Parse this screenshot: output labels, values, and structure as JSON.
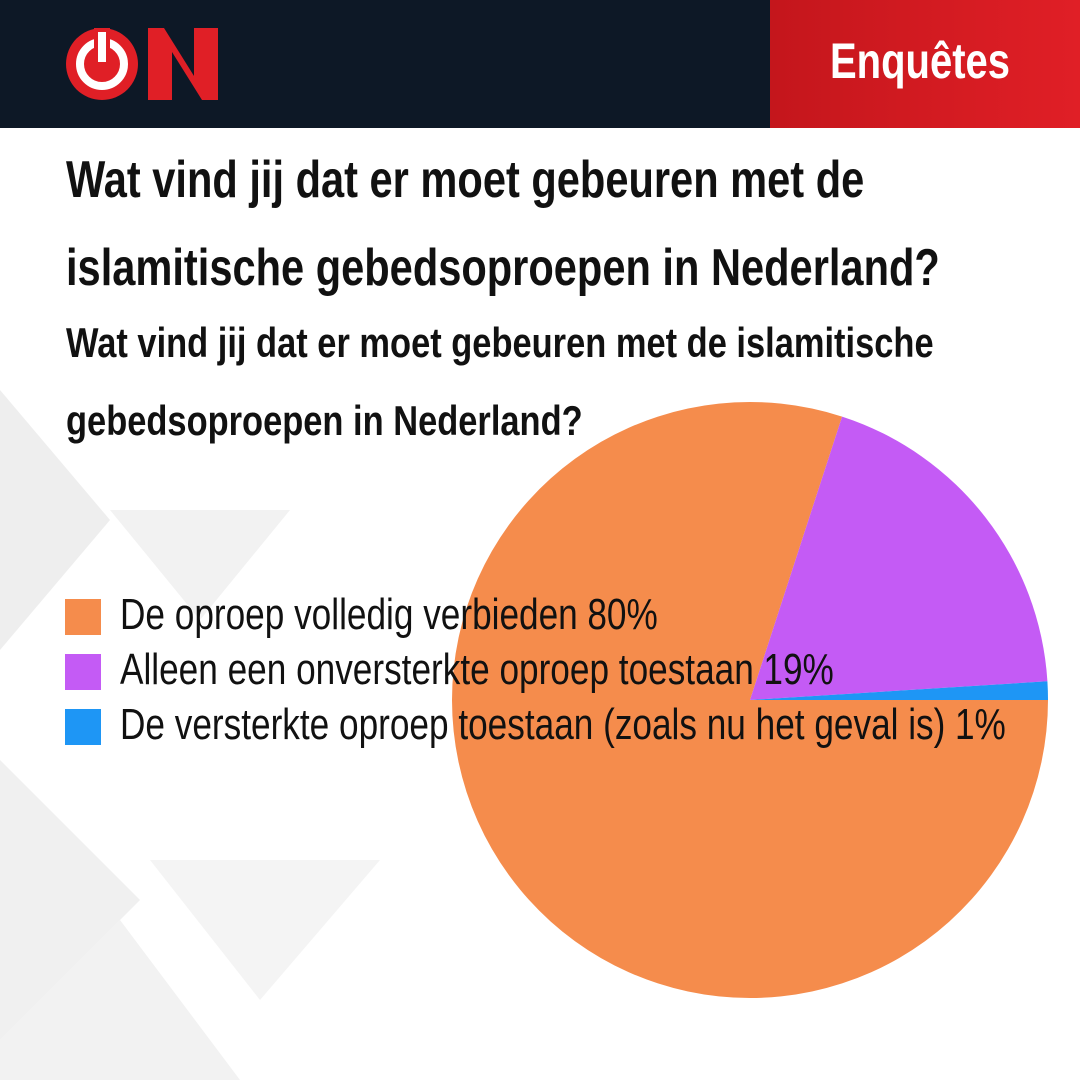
{
  "header": {
    "section": "Enquêtes"
  },
  "chart_data": {
    "type": "pie",
    "title": "Wat vind jij dat er moet gebeuren met de islamitische gebedsoproepen in Nederland?",
    "subtitle": "Wat vind jij dat er moet gebeuren met de islamitische gebedsoproepen in Nederland?",
    "categories": [
      "De oproep volledig verbieden",
      "Alleen een onversterkte oproep toestaan",
      "De versterkte oproep toestaan (zoals nu het geval is)"
    ],
    "values": [
      80,
      19,
      1
    ],
    "value_labels": [
      "80%",
      "19%",
      "1%"
    ],
    "colors": [
      "#f58c4c",
      "#c45bf5",
      "#1e96f5"
    ]
  }
}
